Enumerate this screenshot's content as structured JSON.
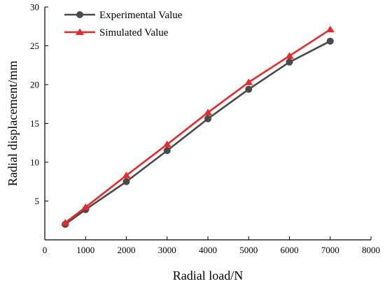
{
  "chart_data": {
    "type": "line",
    "title": "",
    "xlabel": "Radial load/N",
    "ylabel": "Radial displacement/mm",
    "xlim": [
      0,
      8000
    ],
    "ylim": [
      0,
      30
    ],
    "xticks": [
      0,
      1000,
      2000,
      3000,
      4000,
      5000,
      6000,
      7000,
      8000
    ],
    "yticks": [
      5,
      10,
      15,
      20,
      25,
      30
    ],
    "grid": false,
    "legend_position": "top-left",
    "series": [
      {
        "name": "Experimental Value",
        "color": "#4a4a4a",
        "marker": "circle",
        "x": [
          500,
          1000,
          2000,
          3000,
          4000,
          5000,
          6000,
          7000
        ],
        "y": [
          2.0,
          3.9,
          7.5,
          11.5,
          15.6,
          19.4,
          22.9,
          25.6
        ]
      },
      {
        "name": "Simulated Value",
        "color": "#e8292b",
        "marker": "triangle",
        "x": [
          500,
          1000,
          2000,
          3000,
          4000,
          5000,
          6000,
          7000
        ],
        "y": [
          2.2,
          4.2,
          8.3,
          12.3,
          16.4,
          20.3,
          23.7,
          27.1
        ]
      }
    ]
  }
}
